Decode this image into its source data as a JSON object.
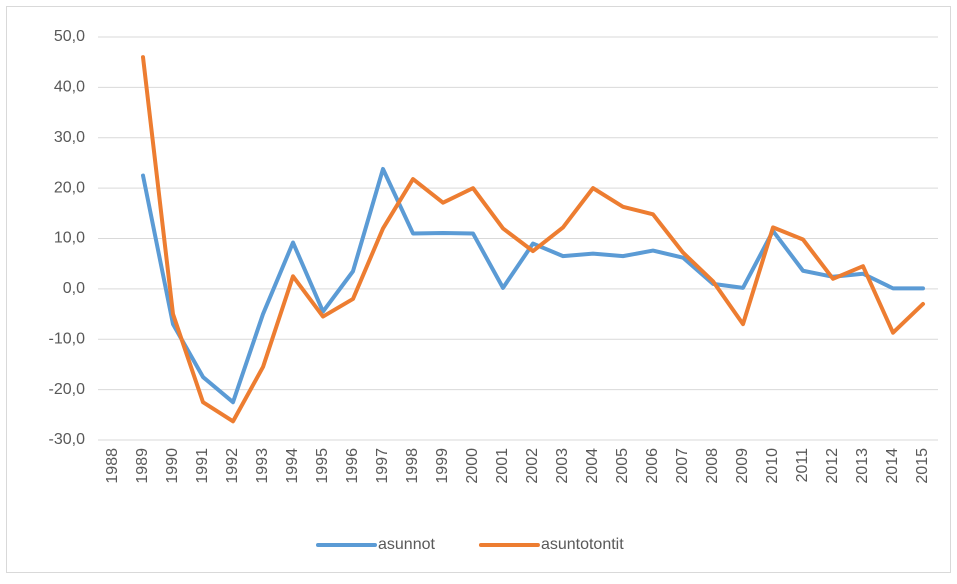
{
  "chart_data": {
    "type": "line",
    "categories": [
      "1988",
      "1989",
      "1990",
      "1991",
      "1992",
      "1993",
      "1994",
      "1995",
      "1996",
      "1997",
      "1998",
      "1999",
      "2000",
      "2001",
      "2002",
      "2003",
      "2004",
      "2005",
      "2006",
      "2007",
      "2008",
      "2009",
      "2010",
      "2011",
      "2012",
      "2013",
      "2014",
      "2015"
    ],
    "series": [
      {
        "name": "asunnot",
        "color": "#5b9bd5",
        "values": [
          null,
          22.5,
          -7,
          -17.5,
          -22.5,
          -5,
          9.2,
          -4.5,
          3.5,
          23.8,
          11,
          11.1,
          11,
          0.2,
          9,
          6.5,
          7,
          6.5,
          7.6,
          6.2,
          1,
          0.2,
          11.5,
          3.6,
          2.4,
          3,
          0.1,
          0.1
        ]
      },
      {
        "name": "asuntotontit",
        "color": "#ed7d31",
        "values": [
          null,
          46,
          -5,
          -22.5,
          -26.3,
          -15.5,
          2.5,
          -5.5,
          -2,
          12,
          21.8,
          17.1,
          20,
          12,
          7.5,
          12.2,
          20,
          16.3,
          14.8,
          7.2,
          1.5,
          -7,
          12.2,
          9.8,
          2,
          4.5,
          -8.7,
          -3
        ]
      }
    ],
    "ylim": [
      -30,
      50
    ],
    "yticks": [
      {
        "value": -30,
        "label": "-30,0"
      },
      {
        "value": -20,
        "label": "-20,0"
      },
      {
        "value": -10,
        "label": "-10,0"
      },
      {
        "value": 0,
        "label": "0,0"
      },
      {
        "value": 10,
        "label": "10,0"
      },
      {
        "value": 20,
        "label": "20,0"
      },
      {
        "value": 30,
        "label": "30,0"
      },
      {
        "value": 40,
        "label": "40,0"
      },
      {
        "value": 50,
        "label": "50,0"
      }
    ],
    "grid": true,
    "legend": "bottom"
  }
}
